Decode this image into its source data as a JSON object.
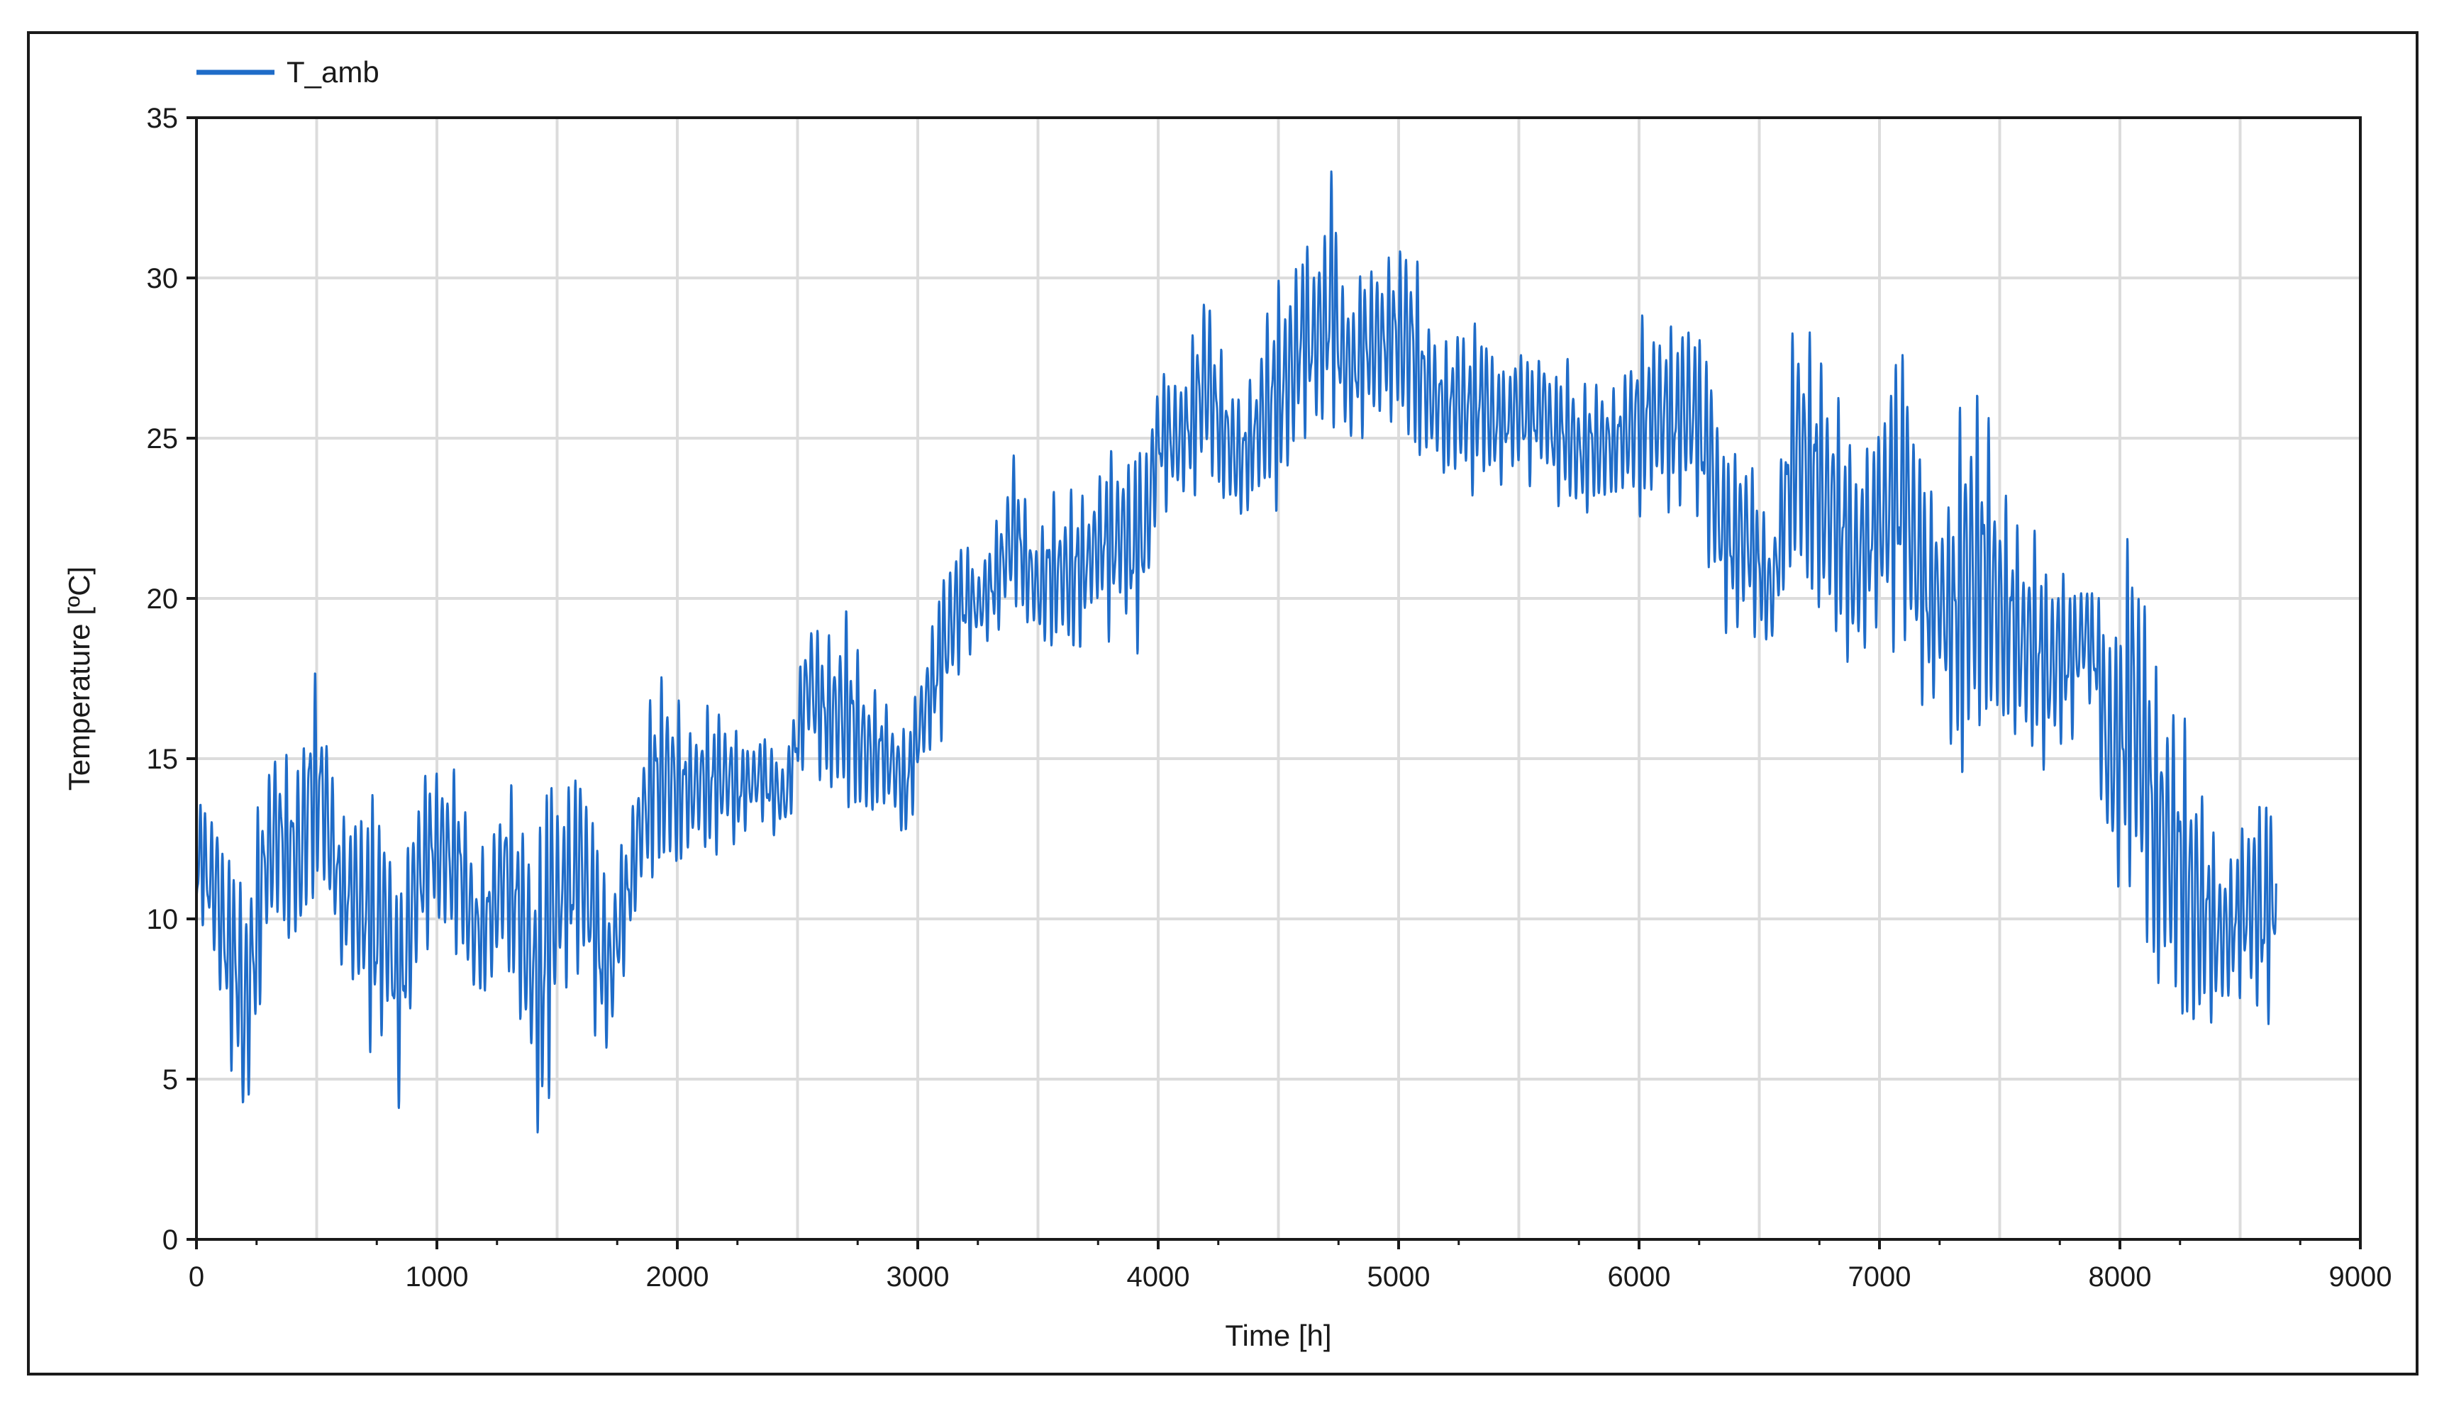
{
  "chart_data": {
    "type": "line",
    "title": "",
    "xlabel": "Time [h]",
    "ylabel": "Temperature [ºC]",
    "xlim": [
      0,
      9000
    ],
    "ylim": [
      0,
      35
    ],
    "xticks": [
      "0",
      "1000",
      "2000",
      "3000",
      "4000",
      "5000",
      "6000",
      "7000",
      "8000",
      "9000"
    ],
    "yticks": [
      "0",
      "5",
      "10",
      "15",
      "20",
      "25",
      "30",
      "35"
    ],
    "grid": true,
    "legend_position": "top-left",
    "series": [
      {
        "name": "T_amb",
        "color": "#1f6cc8",
        "hourly_range": [
          0,
          8760
        ],
        "envelope": {
          "x": [
            0,
            20,
            50,
            80,
            110,
            140,
            170,
            200,
            240,
            280,
            330,
            380,
            430,
            480,
            520,
            560,
            600,
            650,
            700,
            750,
            800,
            840,
            880,
            920,
            980,
            1040,
            1100,
            1160,
            1220,
            1280,
            1330,
            1380,
            1420,
            1440,
            1460,
            1490,
            1520,
            1560,
            1600,
            1640,
            1680,
            1720,
            1760,
            1800,
            1850,
            1900,
            1950,
            2000,
            2050,
            2100,
            2150,
            2200,
            2250,
            2300,
            2350,
            2400,
            2450,
            2500,
            2550,
            2600,
            2650,
            2700,
            2750,
            2800,
            2850,
            2900,
            2950,
            3000,
            3050,
            3100,
            3150,
            3200,
            3250,
            3300,
            3350,
            3400,
            3450,
            3500,
            3550,
            3600,
            3650,
            3700,
            3750,
            3800,
            3850,
            3900,
            3950,
            4000,
            4050,
            4100,
            4150,
            4200,
            4250,
            4300,
            4350,
            4400,
            4450,
            4500,
            4550,
            4600,
            4650,
            4700,
            4720,
            4750,
            4800,
            4850,
            4900,
            4950,
            5000,
            5050,
            5100,
            5150,
            5200,
            5250,
            5300,
            5350,
            5400,
            5450,
            5500,
            5550,
            5600,
            5650,
            5700,
            5750,
            5800,
            5850,
            5900,
            5950,
            6000,
            6050,
            6100,
            6150,
            6200,
            6250,
            6300,
            6350,
            6400,
            6450,
            6500,
            6550,
            6600,
            6650,
            6700,
            6750,
            6800,
            6850,
            6900,
            6950,
            7000,
            7050,
            7100,
            7150,
            7200,
            7250,
            7300,
            7350,
            7400,
            7450,
            7500,
            7550,
            7600,
            7650,
            7700,
            7750,
            7800,
            7850,
            7900,
            7950,
            8000,
            8050,
            8100,
            8150,
            8200,
            8250,
            8300,
            8350,
            8400,
            8450,
            8500,
            8550,
            8600,
            8650,
            8700,
            8760
          ],
          "max": [
            14,
            14,
            13.5,
            14,
            13,
            12,
            13,
            11,
            13,
            14.5,
            16,
            15,
            15.5,
            18,
            17,
            15.5,
            13,
            14,
            14,
            14.5,
            13,
            11,
            13,
            14.5,
            15,
            15,
            14.5,
            12,
            12.5,
            14.5,
            14,
            13,
            12,
            14.5,
            16.5,
            15,
            13.5,
            15,
            15.5,
            14,
            12.5,
            11,
            12.5,
            13,
            15.5,
            17.5,
            18,
            17,
            16,
            16.5,
            17,
            16.5,
            16,
            15.5,
            16,
            15.5,
            15,
            17.5,
            20,
            19,
            19,
            20,
            18.5,
            17.5,
            17,
            16.5,
            16,
            17.5,
            19,
            21,
            22,
            22,
            21,
            22,
            23,
            25,
            23,
            22,
            23.5,
            23,
            24,
            23,
            24,
            25,
            24.5,
            25,
            25.5,
            27,
            27.5,
            27,
            28.5,
            30.5,
            28,
            27,
            26.5,
            27,
            29.5,
            30,
            30.5,
            31.5,
            31,
            32.5,
            34.2,
            31,
            29.5,
            30.5,
            31,
            30.5,
            31.5,
            31.8,
            29.5,
            28.5,
            28,
            29,
            28.5,
            29,
            28,
            27,
            28.5,
            27.5,
            28,
            27,
            28,
            26.5,
            27,
            27,
            26.5,
            27.5,
            29,
            28.5,
            29,
            28.5,
            29.5,
            28.5,
            28,
            25,
            25,
            25,
            23.5,
            22,
            25,
            29.8,
            28.5,
            28,
            27,
            26,
            25,
            25,
            26,
            28,
            28.5,
            26,
            24,
            23,
            23.5,
            27.5,
            27,
            26,
            24,
            23,
            22,
            22.5,
            21,
            21.5,
            20.5,
            21,
            20.5,
            20,
            20,
            23.5,
            21,
            18,
            17.5,
            16.5,
            16,
            14,
            12.5,
            12,
            13,
            14,
            14.5,
            13.5,
            13,
            12.5
          ],
          "min": [
            9,
            10,
            9,
            8,
            6.5,
            5.5,
            4,
            2.5,
            5,
            8.5,
            9.5,
            9,
            8.5,
            10,
            11,
            9.5,
            8.5,
            7.5,
            6.5,
            5,
            6.5,
            4,
            6,
            8,
            9.5,
            9,
            8.5,
            7,
            7.5,
            8.5,
            7,
            5,
            3,
            1.9,
            3,
            6,
            8,
            7.5,
            8,
            7,
            5.5,
            5.5,
            7.5,
            9,
            10.5,
            11,
            11,
            11,
            12,
            12,
            11.5,
            12.5,
            12,
            13,
            13,
            12.5,
            12.5,
            14,
            15,
            14,
            13.5,
            13,
            13,
            12.5,
            13.5,
            13,
            12,
            14,
            15,
            15.5,
            17,
            18,
            18.5,
            18.5,
            19,
            19.5,
            19,
            18.5,
            18,
            18.5,
            17.5,
            19,
            19.5,
            18.5,
            19.5,
            18,
            19,
            23,
            22.5,
            23,
            23,
            23.5,
            23,
            22.5,
            22,
            23,
            22.5,
            22.5,
            23.5,
            25,
            25,
            24.5,
            25.5,
            25,
            24.5,
            25,
            25,
            25.5,
            25,
            24,
            24,
            24,
            23.5,
            23.5,
            23,
            23.5,
            23,
            24,
            23.5,
            23.5,
            24,
            23,
            22.5,
            22.5,
            22.5,
            22.5,
            23,
            23,
            22,
            23,
            22.5,
            22.5,
            22.5,
            22.5,
            20,
            19,
            18.5,
            19,
            18.5,
            18,
            20,
            20,
            19.5,
            19,
            18.5,
            18,
            17,
            18.5,
            19,
            18,
            18.5,
            17,
            16,
            17,
            15,
            13,
            15,
            15.5,
            15,
            15.5,
            15,
            14.5,
            14.5,
            15,
            15.5,
            17,
            16,
            10.5,
            10.5,
            10.5,
            9,
            7,
            7.5,
            6.5,
            5,
            6.5,
            6.5,
            7,
            7.5,
            7,
            6,
            8
          ]
        }
      }
    ]
  }
}
